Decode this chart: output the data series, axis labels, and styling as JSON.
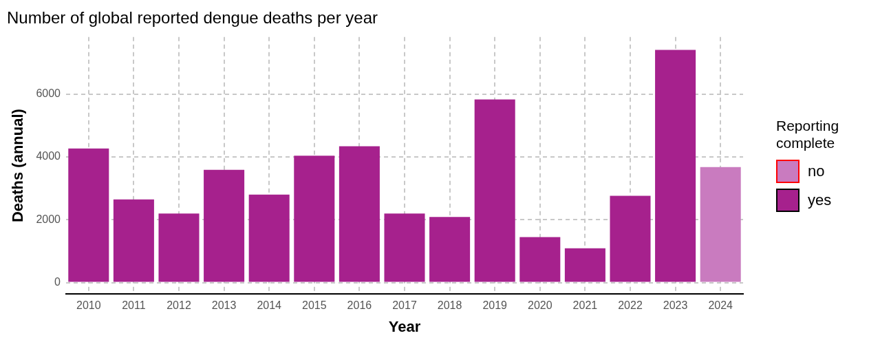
{
  "chart_data": {
    "type": "bar",
    "title": "Number of global reported dengue deaths per year",
    "xlabel": "Year",
    "ylabel": "Deaths (annual)",
    "legend_title": "Reporting complete",
    "categories": [
      "2010",
      "2011",
      "2012",
      "2013",
      "2014",
      "2015",
      "2016",
      "2017",
      "2018",
      "2019",
      "2020",
      "2021",
      "2022",
      "2023",
      "2024"
    ],
    "series": [
      {
        "name": "no",
        "color": "#c97bbf",
        "values": [
          null,
          null,
          null,
          null,
          null,
          null,
          null,
          null,
          null,
          null,
          null,
          null,
          null,
          null,
          3680
        ]
      },
      {
        "name": "yes",
        "color": "#a6218d",
        "values": [
          4270,
          2650,
          2200,
          3590,
          2800,
          4040,
          4340,
          2200,
          2090,
          5830,
          1450,
          1090,
          2760,
          7410,
          null
        ]
      }
    ],
    "ylim": [
      -370,
      7820
    ],
    "yticks": [
      0,
      2000,
      4000,
      6000
    ],
    "grid": true,
    "legend": "right",
    "line_style": "dashed"
  }
}
